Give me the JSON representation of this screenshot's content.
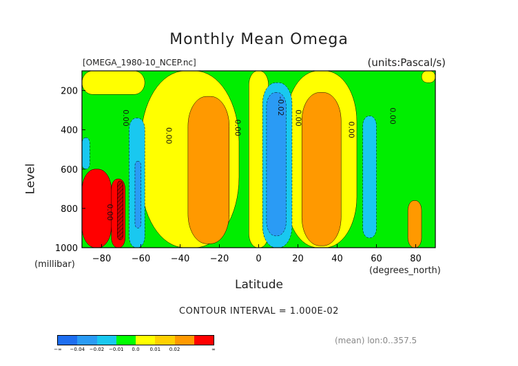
{
  "chart_data": {
    "type": "heatmap",
    "title": "Monthly Mean Omega",
    "file_label": "[OMEGA_1980-10_NCEP.nc]",
    "units_label": "(units:Pascal/s)",
    "xlabel": "Latitude",
    "xunit": "(degrees_north)",
    "ylabel": "Level",
    "yunit": "(millibar)",
    "xlim": [
      -90,
      90
    ],
    "ylim": [
      1000,
      100
    ],
    "x_ticks": [
      "-80",
      "-60",
      "-40",
      "-20",
      "0",
      "20",
      "40",
      "60",
      "80"
    ],
    "y_ticks": [
      "200",
      "400",
      "600",
      "800",
      "1000"
    ],
    "contour_interval": "CONTOUR INTERVAL = 1.000E-02",
    "mean_label": "(mean) lon:0..357.5",
    "contour_labels": [
      {
        "text": "0.00",
        "lat": -69,
        "lev": 340
      },
      {
        "text": "0.00",
        "lat": -47,
        "lev": 430
      },
      {
        "text": "0.00",
        "lat": -12,
        "lev": 390
      },
      {
        "text": "0.00",
        "lat": 19,
        "lev": 340
      },
      {
        "text": "0.00",
        "lat": 46,
        "lev": 400
      },
      {
        "text": "0.00",
        "lat": 67,
        "lev": 330
      },
      {
        "text": "0.00",
        "lat": -77,
        "lev": 820
      },
      {
        "text": "-0.02",
        "lat": 10,
        "lev": 280
      }
    ],
    "colorbar": {
      "colors": [
        "#1e6ef0",
        "#2a9bf5",
        "#19c8f0",
        "#00ff00",
        "#ffff00",
        "#ffd000",
        "#ff9900",
        "#ff0000"
      ],
      "labels": [
        "-∞",
        "-0.04",
        "-0.02",
        "-0.01",
        "0.0",
        "0.01",
        "0.02",
        "∞"
      ]
    },
    "regions": [
      {
        "level": "pos",
        "lat": [
          -60,
          -10
        ],
        "lev": [
          100,
          1000
        ]
      },
      {
        "level": "pos",
        "lat": [
          -5,
          5
        ],
        "lev": [
          100,
          1000
        ]
      },
      {
        "level": "pos",
        "lat": [
          14,
          50
        ],
        "lev": [
          100,
          1000
        ]
      },
      {
        "level": "pos",
        "lat": [
          -90,
          -58
        ],
        "lev": [
          100,
          220
        ]
      },
      {
        "level": "pos",
        "lat": [
          83,
          90
        ],
        "lev": [
          100,
          160
        ]
      },
      {
        "level": "pos2",
        "lat": [
          -36,
          -15
        ],
        "lev": [
          230,
          980
        ]
      },
      {
        "level": "pos2",
        "lat": [
          22,
          42
        ],
        "lev": [
          210,
          990
        ]
      },
      {
        "level": "pos2",
        "lat": [
          76,
          83
        ],
        "lev": [
          760,
          1000
        ]
      },
      {
        "level": "pos3",
        "lat": [
          -90,
          -75
        ],
        "lev": [
          600,
          1000
        ]
      },
      {
        "level": "pos3",
        "lat": [
          -75,
          -68
        ],
        "lev": [
          650,
          1000
        ]
      },
      {
        "level": "pos4",
        "lat": [
          -72,
          -69
        ],
        "lev": [
          660,
          960
        ]
      },
      {
        "level": "neg1",
        "lat": [
          -66,
          -58
        ],
        "lev": [
          340,
          1000
        ]
      },
      {
        "level": "neg1",
        "lat": [
          2,
          17
        ],
        "lev": [
          160,
          1000
        ]
      },
      {
        "level": "neg1",
        "lat": [
          53,
          60
        ],
        "lev": [
          330,
          950
        ]
      },
      {
        "level": "neg1",
        "lat": [
          -90,
          -86
        ],
        "lev": [
          440,
          600
        ]
      },
      {
        "level": "neg2",
        "lat": [
          -63,
          -60
        ],
        "lev": [
          560,
          900
        ]
      },
      {
        "level": "neg2",
        "lat": [
          4,
          14
        ],
        "lev": [
          210,
          940
        ]
      }
    ]
  }
}
